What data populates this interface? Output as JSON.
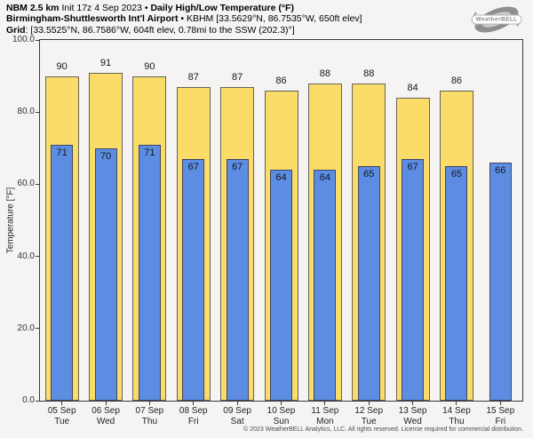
{
  "header": {
    "line1_bold1": "NBM 2.5 km",
    "line1_regular": " Init 17z 4 Sep 2023 • ",
    "line1_bold2": "Daily High/Low Temperature (°F)",
    "line2_bold": "Birmingham-Shuttlesworth Int'l Airport",
    "line2_regular": " • KBHM [33.5629°N, 86.7535°W, 650ft elev]",
    "line3_bold": "Grid",
    "line3_regular": ": [33.5525°N, 86.7586°W, 604ft elev, 0.78mi to the SSW (202.3)°]"
  },
  "logo": {
    "text": "WeatherBELL",
    "subtext": "Analytics LLC"
  },
  "footer": {
    "copyright": "© 2023 WeatherBELL Analytics, LLC. All rights reserved. License required for commercial distribution."
  },
  "chart_data": {
    "type": "bar",
    "title": "Daily High/Low Temperature (°F)",
    "station": "KBHM Birmingham-Shuttlesworth Int'l Airport",
    "xlabel": "",
    "ylabel": "Temperature [°F]",
    "ylim": [
      0,
      100
    ],
    "grid": false,
    "legend": "none",
    "yticks": [
      {
        "value": 0,
        "label": "0.0"
      },
      {
        "value": 20,
        "label": "20.0"
      },
      {
        "value": 40,
        "label": "40.0"
      },
      {
        "value": 60,
        "label": "60.0"
      },
      {
        "value": 80,
        "label": "80.0"
      },
      {
        "value": 100,
        "label": "100.0"
      }
    ],
    "categories": [
      {
        "date": "05 Sep",
        "weekday": "Tue"
      },
      {
        "date": "06 Sep",
        "weekday": "Wed"
      },
      {
        "date": "07 Sep",
        "weekday": "Thu"
      },
      {
        "date": "08 Sep",
        "weekday": "Fri"
      },
      {
        "date": "09 Sep",
        "weekday": "Sat"
      },
      {
        "date": "10 Sep",
        "weekday": "Sun"
      },
      {
        "date": "11 Sep",
        "weekday": "Mon"
      },
      {
        "date": "12 Sep",
        "weekday": "Tue"
      },
      {
        "date": "13 Sep",
        "weekday": "Wed"
      },
      {
        "date": "14 Sep",
        "weekday": "Thu"
      },
      {
        "date": "15 Sep",
        "weekday": "Fri"
      }
    ],
    "series": [
      {
        "name": "High",
        "color": "#fbdc68",
        "border": "#64635a",
        "values": [
          90,
          91,
          90,
          87,
          87,
          86,
          88,
          88,
          84,
          86,
          null
        ]
      },
      {
        "name": "Low",
        "color": "#5c8de2",
        "border": "#3d4763",
        "values": [
          71,
          70,
          71,
          67,
          67,
          64,
          64,
          65,
          67,
          65,
          66
        ]
      }
    ]
  },
  "colors": {
    "background": "#f5f4f2",
    "axis": "#3a3a38",
    "high_fill": "#fbdc68",
    "low_fill": "#5c8de2"
  }
}
